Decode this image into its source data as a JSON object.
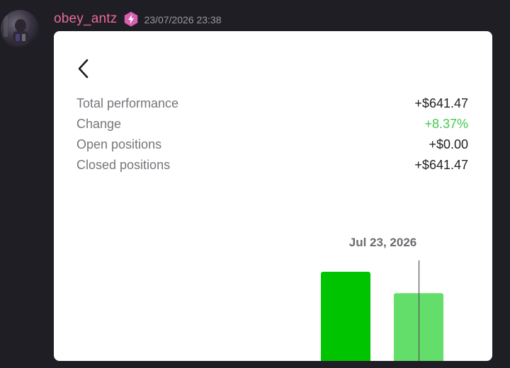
{
  "message": {
    "username": "obey_antz",
    "badge_icon": "lightning-bolt-icon",
    "badge_color": "#d65fb2",
    "timestamp": "23/07/2026 23:38"
  },
  "card": {
    "back_icon": "chevron-left-icon",
    "stats": [
      {
        "label": "Total performance",
        "value": "+$641.47",
        "status": "neutral"
      },
      {
        "label": "Change",
        "value": "+8.37%",
        "status": "positive"
      },
      {
        "label": "Open positions",
        "value": "+$0.00",
        "status": "neutral"
      },
      {
        "label": "Closed positions",
        "value": "+$641.47",
        "status": "neutral"
      }
    ]
  },
  "chart_data": {
    "type": "bar",
    "title": "",
    "xlabel": "",
    "ylabel": "",
    "crosshair_label": "Jul 23, 2026",
    "categories": [
      "",
      "Jul 23, 2026"
    ],
    "values": [
      1.0,
      0.76
    ],
    "bar_colors": [
      "#00c400",
      "#64de6a"
    ],
    "ylim": [
      0,
      1.0
    ],
    "grid": false
  },
  "colors": {
    "background": "#1f1e24",
    "username": "#e36b9a",
    "positive": "#43c84f"
  }
}
